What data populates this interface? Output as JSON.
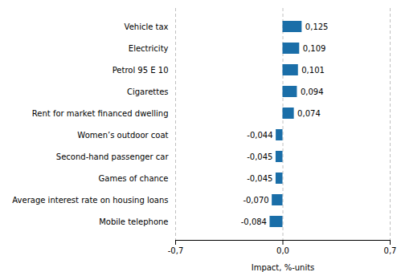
{
  "chart_data": {
    "type": "bar",
    "orientation": "horizontal",
    "categories": [
      "Mobile telephone",
      "Average interest rate on housing loans",
      "Games of chance",
      "Second-hand passenger car",
      "Women’s outdoor coat",
      "Rent for market financed dwelling",
      "Cigarettes",
      "Petrol 95 E 10",
      "Electricity",
      "Vehicle tax"
    ],
    "values": [
      -0.084,
      -0.07,
      -0.045,
      -0.045,
      -0.044,
      0.074,
      0.094,
      0.101,
      0.109,
      0.125
    ],
    "value_labels": [
      "-0,084",
      "-0,070",
      "-0,045",
      "-0,045",
      "-0,044",
      "0,074",
      "0,094",
      "0,101",
      "0,109",
      "0,125"
    ],
    "data_labels": true,
    "color": "#1a6ea8",
    "xlabel": "Impact, %-units",
    "xlim": [
      -0.7,
      0.7
    ],
    "xticks": [
      {
        "value": -0.7,
        "label": "-0,7"
      },
      {
        "value": 0.0,
        "label": "0,0"
      },
      {
        "value": 0.7,
        "label": "0,7"
      }
    ],
    "grid": true
  }
}
